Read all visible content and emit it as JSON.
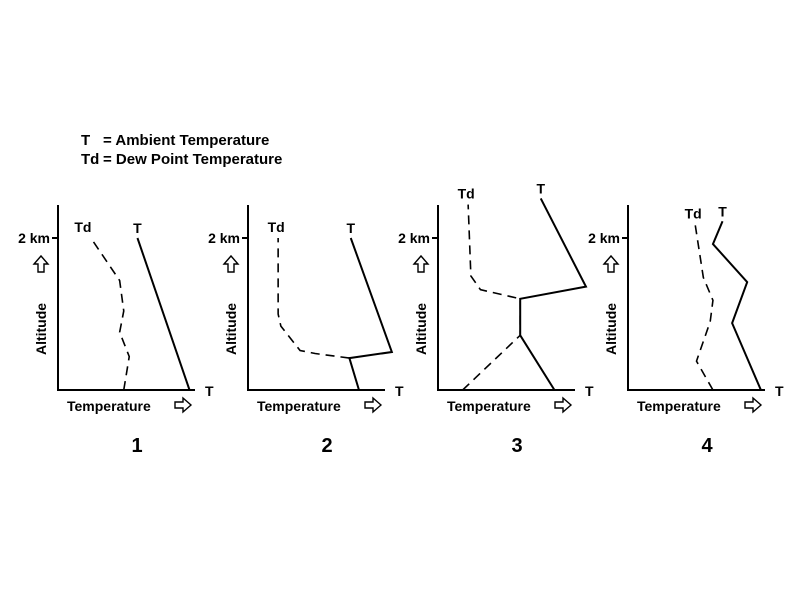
{
  "legend": [
    {
      "symbol": "T",
      "text": "= Ambient Temperature"
    },
    {
      "symbol": "Td",
      "text": "= Dew Point Temperature"
    }
  ],
  "panels": [
    {
      "number": "1",
      "xlabel": "Temperature",
      "ylabel": "Altitude",
      "tick_label": "2 km",
      "t_label": "T",
      "td_label": "Td",
      "axis_end_label": "T",
      "t_profile": [
        [
          0.96,
          0.0
        ],
        [
          0.58,
          1.0
        ]
      ],
      "td_profile": [
        [
          0.48,
          0.0
        ],
        [
          0.52,
          0.22
        ],
        [
          0.45,
          0.38
        ],
        [
          0.48,
          0.52
        ],
        [
          0.45,
          0.72
        ],
        [
          0.24,
          1.0
        ]
      ]
    },
    {
      "number": "2",
      "xlabel": "Temperature",
      "ylabel": "Altitude",
      "tick_label": "2 km",
      "t_label": "T",
      "td_label": "Td",
      "axis_end_label": "T",
      "t_profile": [
        [
          0.81,
          0.0
        ],
        [
          0.74,
          0.21
        ],
        [
          1.05,
          0.25
        ],
        [
          0.75,
          1.0
        ]
      ],
      "td_profile": [
        [
          0.74,
          0.21
        ],
        [
          0.49,
          0.24
        ],
        [
          0.38,
          0.26
        ],
        [
          0.24,
          0.42
        ],
        [
          0.22,
          0.5
        ],
        [
          0.22,
          1.0
        ]
      ]
    },
    {
      "number": "3",
      "xlabel": "Temperature",
      "ylabel": "Altitude",
      "tick_label": "2 km",
      "t_label": "T",
      "td_label": "Td",
      "axis_end_label": "T",
      "t_profile": [
        [
          0.85,
          0.0
        ],
        [
          0.6,
          0.36
        ],
        [
          0.6,
          0.6
        ],
        [
          1.08,
          0.68
        ],
        [
          0.75,
          1.26
        ]
      ],
      "td_profile": [
        [
          0.18,
          0.0
        ],
        [
          0.6,
          0.36
        ],
        [
          0.6,
          0.6
        ],
        [
          0.31,
          0.66
        ],
        [
          0.24,
          0.75
        ],
        [
          0.22,
          1.22
        ]
      ]
    },
    {
      "number": "4",
      "xlabel": "Temperature",
      "ylabel": "Altitude",
      "tick_label": "2 km",
      "t_label": "T",
      "td_label": "Td",
      "axis_end_label": "T",
      "t_profile": [
        [
          0.97,
          0.0
        ],
        [
          0.76,
          0.44
        ],
        [
          0.87,
          0.71
        ],
        [
          0.62,
          0.96
        ],
        [
          0.69,
          1.11
        ]
      ],
      "td_profile": [
        [
          0.62,
          0.0
        ],
        [
          0.5,
          0.19
        ],
        [
          0.6,
          0.45
        ],
        [
          0.62,
          0.59
        ],
        [
          0.55,
          0.74
        ],
        [
          0.49,
          1.09
        ]
      ]
    }
  ]
}
